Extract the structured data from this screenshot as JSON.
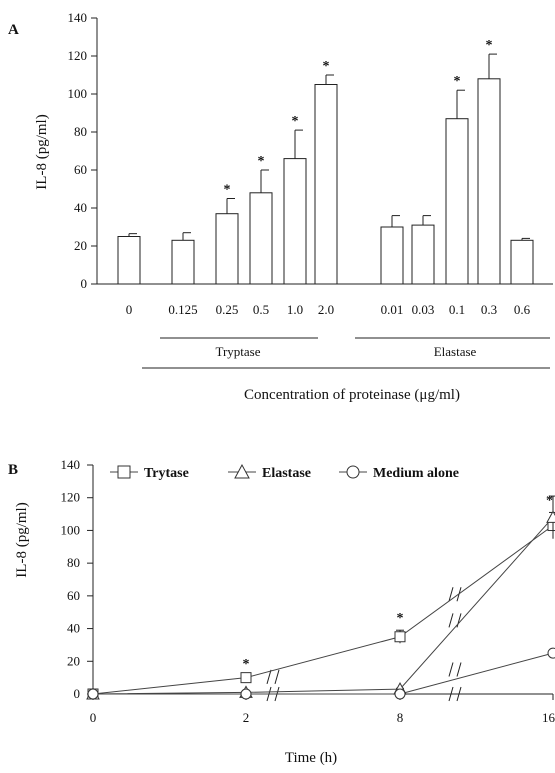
{
  "chart_data": [
    {
      "panel": "A",
      "type": "bar",
      "ylabel": "IL-8 (pg/ml)",
      "xlabel": "Concentration of proteinase (μg/ml)",
      "ylim": [
        0,
        140
      ],
      "yticks": [
        "0",
        "20",
        "40",
        "60",
        "80",
        "100",
        "120",
        "140"
      ],
      "categories": [
        "0",
        "0.125",
        "0.25",
        "0.5",
        "1.0",
        "2.0",
        "0.01",
        "0.03",
        "0.1",
        "0.3",
        "0.6"
      ],
      "values": [
        25,
        23,
        37,
        48,
        66,
        105,
        30,
        31,
        87,
        108,
        23
      ],
      "errors": [
        1.5,
        4,
        8,
        12,
        15,
        5,
        6,
        5,
        15,
        13,
        1
      ],
      "significant": [
        false,
        false,
        true,
        true,
        true,
        true,
        false,
        false,
        true,
        true,
        false
      ],
      "groups": [
        {
          "label": "Tryptase"
        },
        {
          "label": "Elastase"
        }
      ]
    },
    {
      "panel": "B",
      "type": "line",
      "ylabel": "IL-8 (pg/ml)",
      "xlabel": "Time (h)",
      "ylim": [
        0,
        140
      ],
      "yticks": [
        "0",
        "20",
        "40",
        "60",
        "80",
        "100",
        "120",
        "140"
      ],
      "x": [
        "0",
        "2",
        "8",
        "16"
      ],
      "series": [
        {
          "name": "Trytase",
          "marker": "square",
          "values": [
            0,
            10,
            35,
            103
          ],
          "errors": [
            0,
            1,
            4,
            8
          ],
          "significant": [
            false,
            true,
            true,
            true
          ]
        },
        {
          "name": "Elastase",
          "marker": "triangle",
          "values": [
            0,
            1,
            3,
            108
          ],
          "errors": [
            0,
            0.5,
            0.5,
            13
          ],
          "significant": [
            false,
            false,
            false,
            false
          ]
        },
        {
          "name": "Medium alone",
          "marker": "circle",
          "values": [
            0,
            0,
            0,
            25
          ],
          "errors": [
            0,
            0,
            0,
            0
          ],
          "significant": [
            false,
            false,
            false,
            false
          ]
        }
      ],
      "star_symbol": "*"
    }
  ]
}
